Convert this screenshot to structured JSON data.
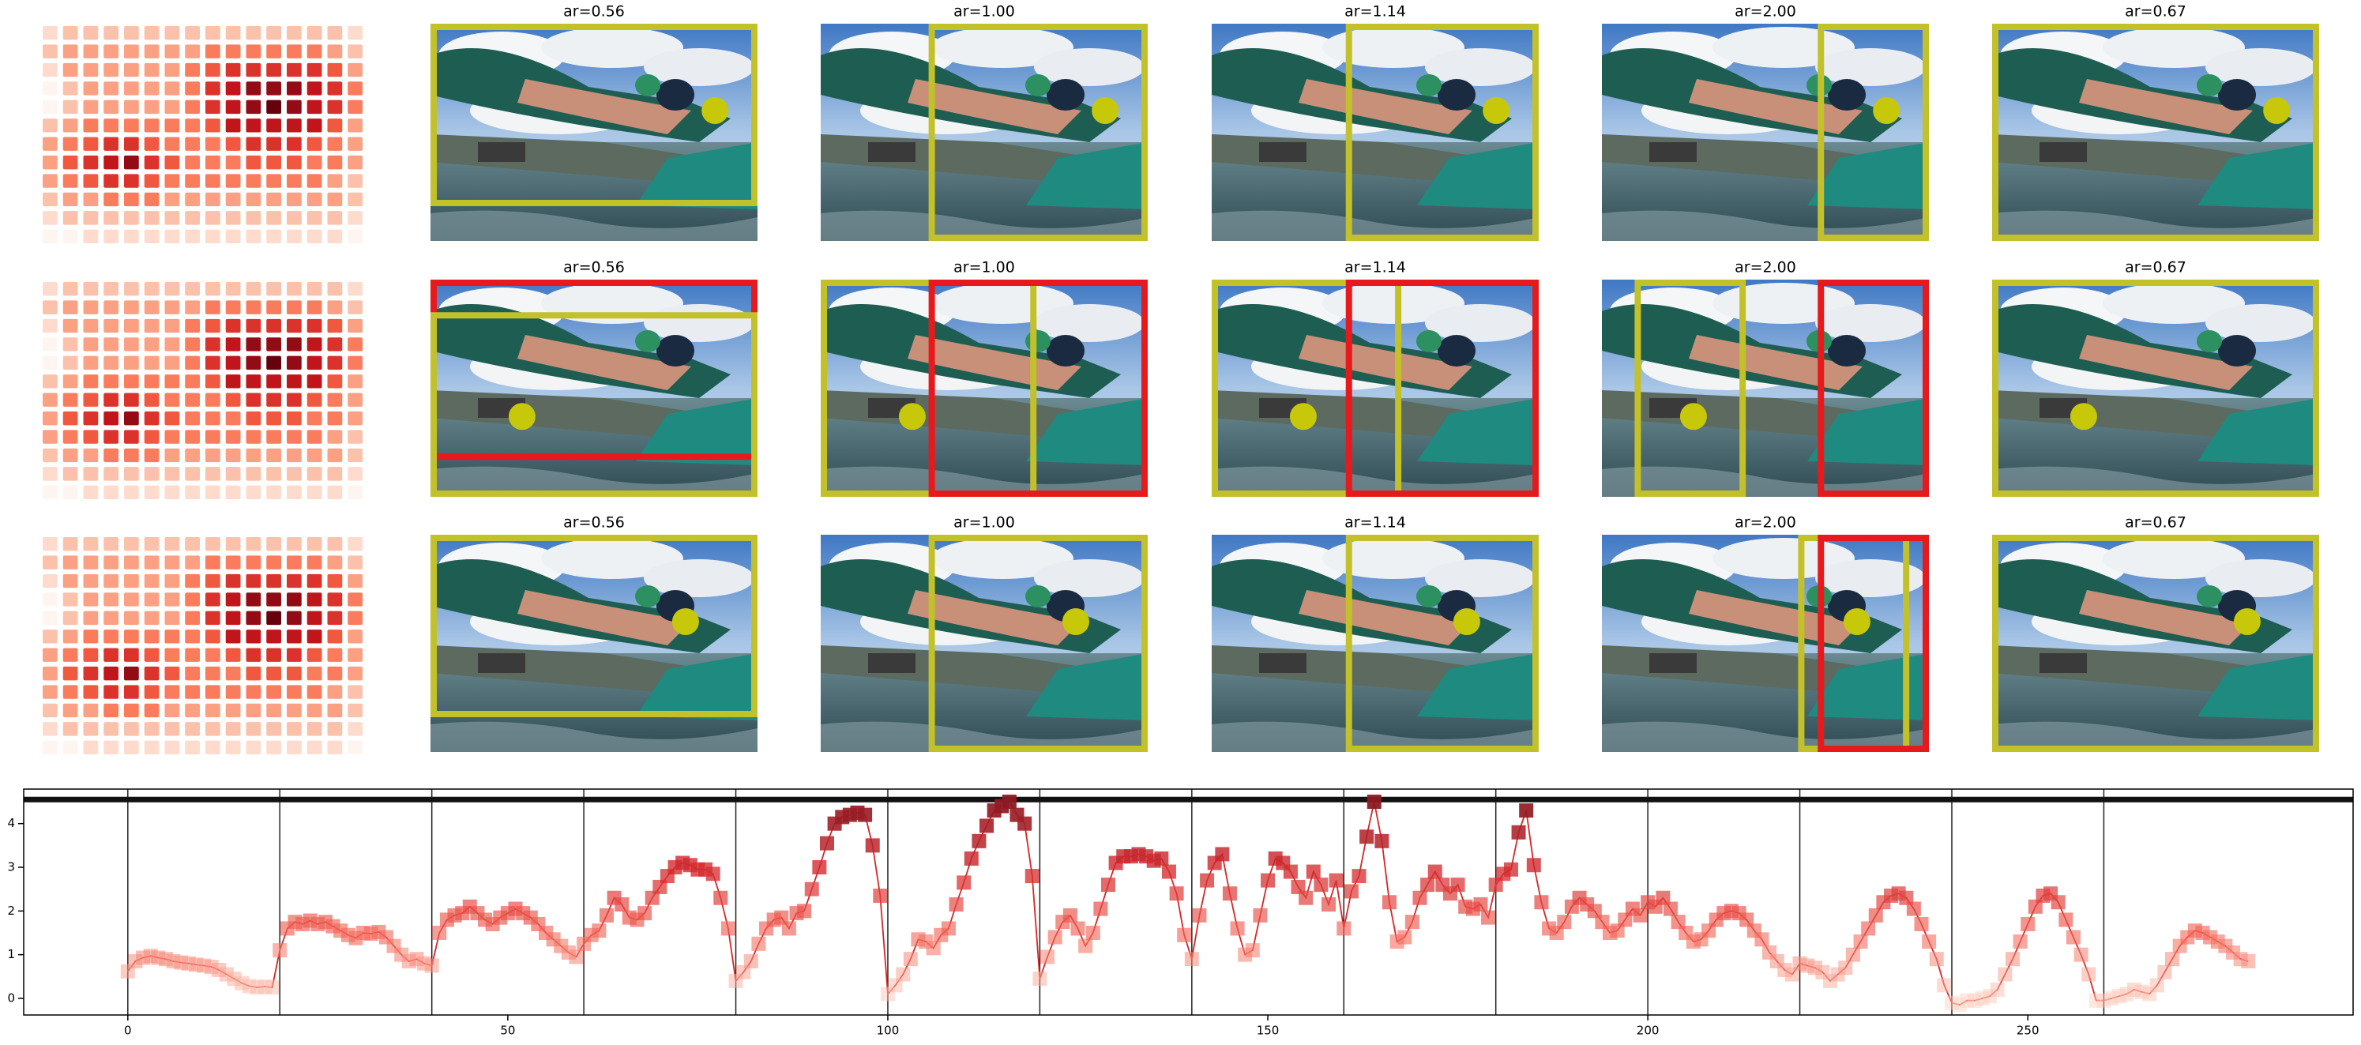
{
  "panels": {
    "rows": [
      {
        "titles": [
          "ar=0.56",
          "ar=1.00",
          "ar=1.14",
          "ar=2.00",
          "ar=0.67"
        ]
      },
      {
        "titles": [
          "ar=0.56",
          "ar=1.00",
          "ar=1.14",
          "ar=2.00",
          "ar=0.67"
        ]
      },
      {
        "titles": [
          "ar=0.56",
          "ar=1.00",
          "ar=1.14",
          "ar=2.00",
          "ar=0.67"
        ]
      }
    ]
  },
  "chart_data": [
    {
      "type": "heatmap",
      "colors": [
        "#fff5f0",
        "#fcbba1",
        "#fb6a4a",
        "#cb181d",
        "#67000d"
      ],
      "values": [
        [
          0.2,
          0.3,
          0.3,
          0.3,
          0.3,
          0.3,
          0.3,
          0.3,
          0.3,
          0.3,
          0.3,
          0.3,
          0.3,
          0.3,
          0.3,
          0.2
        ],
        [
          0.3,
          0.4,
          0.4,
          0.4,
          0.4,
          0.4,
          0.4,
          0.4,
          0.5,
          0.5,
          0.5,
          0.5,
          0.5,
          0.5,
          0.4,
          0.3
        ],
        [
          0.2,
          0.4,
          0.4,
          0.4,
          0.4,
          0.4,
          0.4,
          0.5,
          0.6,
          0.7,
          0.7,
          0.7,
          0.7,
          0.7,
          0.6,
          0.4
        ],
        [
          0.1,
          0.3,
          0.4,
          0.4,
          0.4,
          0.4,
          0.4,
          0.5,
          0.7,
          0.8,
          0.9,
          0.9,
          0.9,
          0.8,
          0.7,
          0.5
        ],
        [
          0.1,
          0.3,
          0.4,
          0.4,
          0.4,
          0.4,
          0.4,
          0.5,
          0.7,
          0.8,
          0.9,
          1.0,
          0.9,
          0.8,
          0.7,
          0.5
        ],
        [
          0.3,
          0.4,
          0.5,
          0.5,
          0.5,
          0.5,
          0.5,
          0.5,
          0.6,
          0.8,
          0.8,
          0.8,
          0.8,
          0.8,
          0.6,
          0.4
        ],
        [
          0.4,
          0.5,
          0.6,
          0.7,
          0.7,
          0.6,
          0.5,
          0.5,
          0.5,
          0.6,
          0.7,
          0.7,
          0.7,
          0.6,
          0.5,
          0.4
        ],
        [
          0.4,
          0.6,
          0.7,
          0.8,
          0.9,
          0.7,
          0.6,
          0.5,
          0.5,
          0.5,
          0.6,
          0.6,
          0.6,
          0.5,
          0.5,
          0.4
        ],
        [
          0.4,
          0.5,
          0.6,
          0.7,
          0.7,
          0.6,
          0.5,
          0.5,
          0.5,
          0.5,
          0.5,
          0.5,
          0.5,
          0.5,
          0.4,
          0.3
        ],
        [
          0.3,
          0.4,
          0.4,
          0.5,
          0.5,
          0.5,
          0.4,
          0.4,
          0.4,
          0.4,
          0.4,
          0.4,
          0.4,
          0.4,
          0.4,
          0.3
        ],
        [
          0.2,
          0.3,
          0.3,
          0.3,
          0.3,
          0.3,
          0.3,
          0.3,
          0.3,
          0.3,
          0.3,
          0.3,
          0.3,
          0.3,
          0.3,
          0.2
        ],
        [
          0.1,
          0.1,
          0.2,
          0.2,
          0.2,
          0.2,
          0.2,
          0.2,
          0.2,
          0.2,
          0.2,
          0.2,
          0.2,
          0.2,
          0.2,
          0.1
        ]
      ]
    },
    {
      "type": "line",
      "color": "#d62728",
      "marker_colors": [
        "#fdd4c2",
        "#f4695a",
        "#d42a2e",
        "#8b1a24"
      ],
      "xlim": [
        -13.7,
        292.8
      ],
      "ylim": [
        -0.38,
        4.79
      ],
      "xticks": [
        0,
        50,
        100,
        150,
        200,
        250
      ],
      "yticks": [
        0,
        1,
        2,
        3,
        4
      ],
      "vlines": [
        0,
        20,
        40,
        60,
        80,
        100,
        120,
        140,
        160,
        180,
        200,
        220,
        240,
        260
      ],
      "hline": 4.55,
      "x": [
        0,
        1,
        2,
        3,
        4,
        5,
        6,
        7,
        8,
        9,
        10,
        11,
        12,
        13,
        14,
        15,
        16,
        17,
        18,
        19,
        20,
        21,
        22,
        23,
        24,
        25,
        26,
        27,
        28,
        29,
        30,
        31,
        32,
        33,
        34,
        35,
        36,
        37,
        38,
        39,
        40,
        41,
        42,
        43,
        44,
        45,
        46,
        47,
        48,
        49,
        50,
        51,
        52,
        53,
        54,
        55,
        56,
        57,
        58,
        59,
        60,
        61,
        62,
        63,
        64,
        65,
        66,
        67,
        68,
        69,
        70,
        71,
        72,
        73,
        74,
        75,
        76,
        77,
        78,
        79,
        80,
        81,
        82,
        83,
        84,
        85,
        86,
        87,
        88,
        89,
        90,
        91,
        92,
        93,
        94,
        95,
        96,
        97,
        98,
        99,
        100,
        101,
        102,
        103,
        104,
        105,
        106,
        107,
        108,
        109,
        110,
        111,
        112,
        113,
        114,
        115,
        116,
        117,
        118,
        119,
        120,
        121,
        122,
        123,
        124,
        125,
        126,
        127,
        128,
        129,
        130,
        131,
        132,
        133,
        134,
        135,
        136,
        137,
        138,
        139,
        140,
        141,
        142,
        143,
        144,
        145,
        146,
        147,
        148,
        149,
        150,
        151,
        152,
        153,
        154,
        155,
        156,
        157,
        158,
        159,
        160,
        161,
        162,
        163,
        164,
        165,
        166,
        167,
        168,
        169,
        170,
        171,
        172,
        173,
        174,
        175,
        176,
        177,
        178,
        179,
        180,
        181,
        182,
        183,
        184,
        185,
        186,
        187,
        188,
        189,
        190,
        191,
        192,
        193,
        194,
        195,
        196,
        197,
        198,
        199,
        200,
        201,
        202,
        203,
        204,
        205,
        206,
        207,
        208,
        209,
        210,
        211,
        212,
        213,
        214,
        215,
        216,
        217,
        218,
        219,
        220,
        221,
        222,
        223,
        224,
        225,
        226,
        227,
        228,
        229,
        230,
        231,
        232,
        233,
        234,
        235,
        236,
        237,
        238,
        239,
        240,
        241,
        242,
        243,
        244,
        245,
        246,
        247,
        248,
        249,
        250,
        251,
        252,
        253,
        254,
        255,
        256,
        257,
        258,
        259,
        260,
        261,
        262,
        263,
        264,
        265,
        266,
        267,
        268,
        269,
        270,
        271,
        272,
        273,
        274,
        275,
        276,
        277,
        278,
        279
      ],
      "values": [
        0.62,
        0.85,
        0.93,
        0.97,
        0.93,
        0.9,
        0.85,
        0.82,
        0.8,
        0.77,
        0.75,
        0.72,
        0.65,
        0.55,
        0.45,
        0.35,
        0.28,
        0.25,
        0.27,
        0.25,
        1.1,
        1.6,
        1.75,
        1.7,
        1.78,
        1.7,
        1.75,
        1.65,
        1.55,
        1.45,
        1.38,
        1.5,
        1.48,
        1.52,
        1.4,
        1.2,
        1.0,
        0.85,
        0.9,
        0.8,
        0.75,
        1.5,
        1.8,
        1.9,
        1.95,
        2.1,
        1.95,
        1.8,
        1.7,
        1.85,
        1.95,
        2.05,
        1.95,
        1.85,
        1.7,
        1.5,
        1.35,
        1.2,
        1.05,
        0.95,
        1.25,
        1.45,
        1.55,
        1.9,
        2.3,
        2.15,
        1.85,
        1.8,
        1.95,
        2.3,
        2.55,
        2.8,
        3.0,
        3.1,
        3.05,
        2.95,
        2.95,
        2.85,
        2.3,
        1.6,
        0.4,
        0.6,
        0.85,
        1.25,
        1.6,
        1.8,
        1.85,
        1.6,
        1.95,
        2.0,
        2.5,
        3.0,
        3.55,
        4.0,
        4.15,
        4.2,
        4.25,
        4.2,
        3.5,
        2.35,
        0.1,
        0.3,
        0.55,
        0.9,
        1.35,
        1.3,
        1.15,
        1.45,
        1.6,
        2.15,
        2.65,
        3.2,
        3.6,
        3.95,
        4.3,
        4.4,
        4.5,
        4.2,
        4.0,
        2.8,
        0.45,
        0.95,
        1.4,
        1.75,
        1.9,
        1.6,
        1.2,
        1.5,
        2.05,
        2.6,
        3.1,
        3.25,
        3.25,
        3.3,
        3.25,
        3.15,
        3.2,
        2.9,
        2.4,
        1.45,
        0.9,
        1.9,
        2.7,
        3.1,
        3.3,
        2.4,
        1.6,
        1.0,
        1.1,
        1.9,
        2.7,
        3.2,
        3.1,
        2.9,
        2.55,
        2.3,
        2.9,
        2.6,
        2.15,
        2.7,
        1.6,
        2.45,
        2.8,
        3.7,
        4.5,
        3.6,
        2.2,
        1.3,
        1.4,
        1.75,
        2.3,
        2.6,
        2.9,
        2.6,
        2.4,
        2.6,
        2.1,
        2.05,
        2.15,
        1.85,
        2.6,
        2.85,
        2.95,
        3.8,
        4.3,
        3.05,
        2.2,
        1.6,
        1.5,
        1.75,
        2.1,
        2.3,
        2.15,
        2.0,
        1.75,
        1.5,
        1.55,
        1.8,
        2.05,
        1.9,
        2.2,
        2.1,
        2.3,
        2.05,
        1.75,
        1.5,
        1.3,
        1.35,
        1.55,
        1.8,
        1.95,
        2.0,
        1.95,
        1.8,
        1.55,
        1.35,
        1.05,
        0.85,
        0.65,
        0.55,
        0.8,
        0.75,
        0.7,
        0.6,
        0.4,
        0.55,
        0.7,
        1.0,
        1.3,
        1.6,
        1.9,
        2.2,
        2.35,
        2.4,
        2.3,
        2.05,
        1.7,
        1.3,
        0.9,
        0.3,
        -0.1,
        -0.15,
        -0.05,
        -0.05,
        0.0,
        0.05,
        0.2,
        0.55,
        0.9,
        1.3,
        1.7,
        2.1,
        2.35,
        2.4,
        2.2,
        1.8,
        1.4,
        1.0,
        0.55,
        -0.05,
        -0.05,
        0.0,
        0.05,
        0.1,
        0.2,
        0.15,
        0.1,
        0.3,
        0.6,
        0.9,
        1.2,
        1.4,
        1.55,
        1.5,
        1.4,
        1.3,
        1.2,
        1.05,
        0.9,
        0.85
      ]
    }
  ]
}
